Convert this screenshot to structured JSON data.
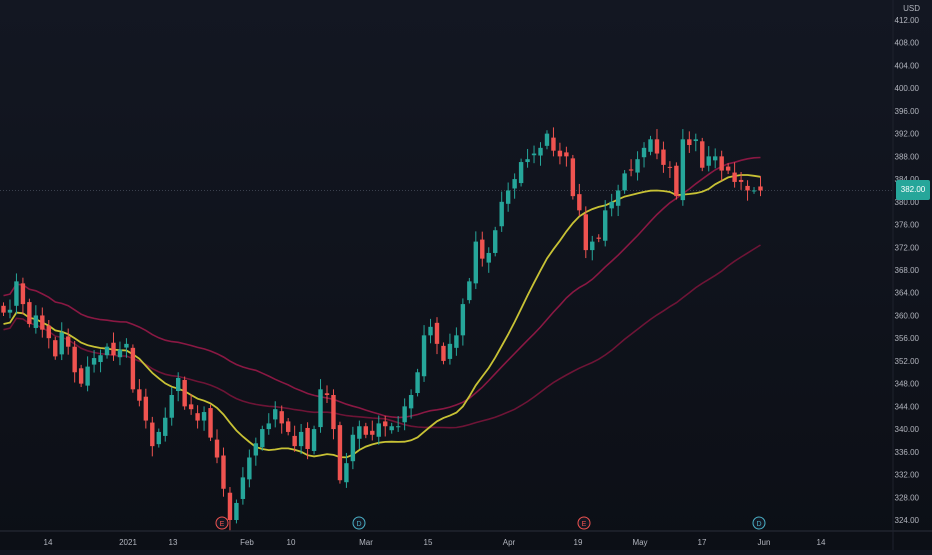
{
  "chart_data": {
    "type": "candlestick",
    "currency": "USD",
    "last_price": 382.0,
    "colors": {
      "up": "#26a69a",
      "down": "#ef5350",
      "ma_fast": "#c8c235",
      "ma_mid": "#8a1843",
      "ma_slow": "#6e1436"
    },
    "y_ticks": [
      "412.00",
      "408.00",
      "404.00",
      "400.00",
      "396.00",
      "392.00",
      "388.00",
      "384.00",
      "380.00",
      "376.00",
      "372.00",
      "368.00",
      "364.00",
      "360.00",
      "356.00",
      "352.00",
      "348.00",
      "344.00",
      "340.00",
      "336.00",
      "332.00",
      "328.00",
      "324.00"
    ],
    "x_ticks": [
      {
        "label": "14",
        "px": 48
      },
      {
        "label": "2021",
        "px": 128
      },
      {
        "label": "13",
        "px": 173
      },
      {
        "label": "Feb",
        "px": 247
      },
      {
        "label": "10",
        "px": 291
      },
      {
        "label": "Mar",
        "px": 366
      },
      {
        "label": "15",
        "px": 428
      },
      {
        "label": "Apr",
        "px": 509
      },
      {
        "label": "19",
        "px": 578
      },
      {
        "label": "May",
        "px": 640
      },
      {
        "label": "17",
        "px": 702
      },
      {
        "label": "Jun",
        "px": 764
      },
      {
        "label": "14",
        "px": 821
      }
    ],
    "events": [
      {
        "label": "E",
        "px": 222,
        "color": "#ef5350"
      },
      {
        "label": "D",
        "px": 359,
        "color": "#4bb2c8"
      },
      {
        "label": "E",
        "px": 584,
        "color": "#ef5350"
      },
      {
        "label": "D",
        "px": 759,
        "color": "#4bb2c8"
      }
    ],
    "closes": [
      360.5,
      361.0,
      366.0,
      362.0,
      358.5,
      360.0,
      357.5,
      356.0,
      352.8,
      357.0,
      354.5,
      350.0,
      348.0,
      351.0,
      352.5,
      353.0,
      354.5,
      353.0,
      354.0,
      355.0,
      347.0,
      345.0,
      341.5,
      337.0,
      339.5,
      342.0,
      346.0,
      349.0,
      344.0,
      343.5,
      341.5,
      343.0,
      338.5,
      335.0,
      329.5,
      324.0,
      327.0,
      331.5,
      335.0,
      337.5,
      340.0,
      341.0,
      343.5,
      341.0,
      339.5,
      337.0,
      339.5,
      336.5,
      340.0,
      347.0,
      346.0,
      340.0,
      331.0,
      334.0,
      339.0,
      340.5,
      339.0,
      339.0,
      341.0,
      340.5,
      340.5,
      340.5,
      344.0,
      346.0,
      350.0,
      356.5,
      358.0,
      355.0,
      352.0,
      355.0,
      356.5,
      362.0,
      366.0,
      373.0,
      370.0,
      371.0,
      375.0,
      380.0,
      382.0,
      384.0,
      387.0,
      387.5,
      388.5,
      389.5,
      392.0,
      389.0,
      388.0,
      388.0,
      381.0,
      378.5,
      371.5,
      373.0,
      373.5,
      378.5,
      380.0,
      382.0,
      385.0,
      385.5,
      387.5,
      389.5,
      391.0,
      388.5,
      386.5,
      386.0,
      381.0,
      391.0,
      390.0,
      391.0,
      386.0,
      388.0,
      388.0,
      385.5,
      385.5,
      383.5,
      383.5,
      382.0,
      382.0,
      382.0
    ]
  }
}
